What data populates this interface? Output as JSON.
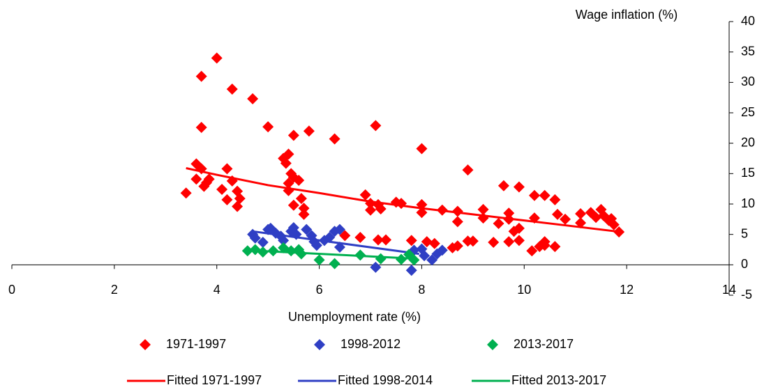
{
  "chart_data": {
    "type": "scatter",
    "x_label": "Unemployment rate (%)",
    "y_label": "Wage inflation (%)",
    "xlim": [
      0,
      14
    ],
    "xticks": [
      0,
      2,
      4,
      6,
      8,
      10,
      12,
      14
    ],
    "ylim": [
      -5,
      40
    ],
    "yticks": [
      -5,
      0,
      5,
      10,
      15,
      20,
      25,
      30,
      35,
      40
    ],
    "series": [
      {
        "name": "1971-1997",
        "mode": "markers",
        "color": "#ff0000",
        "x": [
          3.4,
          3.7,
          4.0,
          3.7,
          4.3,
          4.7,
          5.0,
          5.5,
          5.8,
          6.3,
          7.1,
          8.0,
          8.9,
          9.6,
          9.9,
          3.6,
          3.7,
          3.6,
          3.8,
          3.85,
          3.75,
          4.1,
          4.2,
          4.3,
          4.2,
          4.4,
          4.45,
          4.4,
          5.3,
          5.4,
          5.35,
          5.4,
          5.45,
          5.5,
          5.6,
          5.5,
          5.65,
          5.7,
          5.7,
          5.4,
          6.9,
          7.0,
          7.0,
          7.15,
          7.2,
          7.5,
          7.6,
          8.0,
          8.0,
          8.4,
          8.7,
          8.7,
          9.2,
          9.2,
          9.5,
          9.7,
          9.7,
          9.8,
          9.9,
          10.2,
          10.4,
          10.6,
          10.2,
          10.65,
          10.8,
          11.1,
          11.1,
          11.3,
          11.4,
          11.5,
          11.55,
          11.65,
          11.7,
          11.75,
          11.85,
          6.5,
          6.8,
          7.15,
          7.3,
          7.8,
          8.1,
          8.25,
          8.6,
          8.7,
          8.9,
          9.0,
          9.4,
          9.7,
          9.9,
          10.15,
          10.3,
          10.4,
          10.4,
          10.6
        ],
        "values": [
          11.8,
          31,
          34,
          22.6,
          28.9,
          27.3,
          22.7,
          21.3,
          22,
          20.7,
          22.9,
          19.1,
          15.6,
          13,
          12.8,
          16.6,
          15.8,
          14.1,
          13.5,
          14.1,
          12.9,
          12.4,
          15.8,
          13.8,
          10.7,
          12.1,
          10.9,
          9.6,
          17.5,
          18.2,
          16.7,
          13.4,
          15,
          14.4,
          13.9,
          9.8,
          10.9,
          9.3,
          8.3,
          12.2,
          11.5,
          10.1,
          9,
          9.9,
          9.2,
          10.3,
          10.1,
          9.9,
          8.6,
          9,
          8.8,
          7.1,
          9.1,
          7.7,
          6.8,
          8.5,
          7.5,
          5.5,
          6,
          11.4,
          11.4,
          10.7,
          7.7,
          8.3,
          7.5,
          8.4,
          6.9,
          8.6,
          7.8,
          9.1,
          8.1,
          7.3,
          7.6,
          6.6,
          5.4,
          4.8,
          4.5,
          4.1,
          4.1,
          4,
          3.8,
          3.5,
          2.8,
          3.1,
          3.9,
          3.9,
          3.7,
          3.8,
          4,
          2.3,
          3,
          3.8,
          3.2,
          3
        ]
      },
      {
        "name": "1998-2012",
        "mode": "markers",
        "color": "#2f3fc4",
        "x": [
          4.7,
          4.75,
          4.9,
          5.0,
          5.05,
          5.15,
          5.25,
          5.3,
          5.45,
          5.5,
          5.55,
          5.75,
          5.85,
          5.9,
          5.95,
          6.1,
          6.2,
          6.3,
          6.4,
          6.4,
          7.1,
          7.8,
          7.85,
          8.0,
          8.05,
          8.2,
          8.3,
          8.4
        ],
        "values": [
          5,
          4.4,
          3.7,
          5.8,
          6,
          5.2,
          4.7,
          4,
          5.5,
          6.1,
          5,
          5.8,
          4.8,
          3.8,
          3.2,
          4,
          4.5,
          5.5,
          5.8,
          2.9,
          -0.4,
          -0.9,
          2.4,
          2.6,
          1.5,
          0.8,
          1.8,
          2.4
        ]
      },
      {
        "name": "2013-2017",
        "mode": "markers",
        "color": "#00b050",
        "x": [
          4.6,
          4.75,
          4.9,
          5.1,
          5.3,
          5.45,
          5.6,
          5.65,
          6.0,
          6.3,
          6.8,
          7.2,
          7.6,
          7.75,
          7.85
        ],
        "values": [
          2.3,
          2.5,
          2.1,
          2.3,
          2.8,
          2.3,
          2.5,
          1.8,
          0.8,
          0.2,
          1.6,
          1,
          0.9,
          1.7,
          0.8
        ]
      },
      {
        "name": "Fitted 1971-1997",
        "mode": "line",
        "color": "#ff0000",
        "x": [
          3.4,
          4,
          5,
          6,
          7,
          8,
          9,
          10,
          11,
          11.9
        ],
        "values": [
          15.9,
          14.8,
          13.1,
          11.8,
          10.4,
          9.3,
          8.3,
          7.3,
          6.3,
          5.4
        ]
      },
      {
        "name": "Fitted 1998-2014",
        "mode": "line",
        "color": "#2f3fc4",
        "x": [
          4.7,
          7.95
        ],
        "values": [
          5.5,
          1.8
        ]
      },
      {
        "name": "Fitted 2013-2017",
        "mode": "line",
        "color": "#00b050",
        "x": [
          4.6,
          7.9
        ],
        "values": [
          2.4,
          1
        ]
      }
    ]
  }
}
